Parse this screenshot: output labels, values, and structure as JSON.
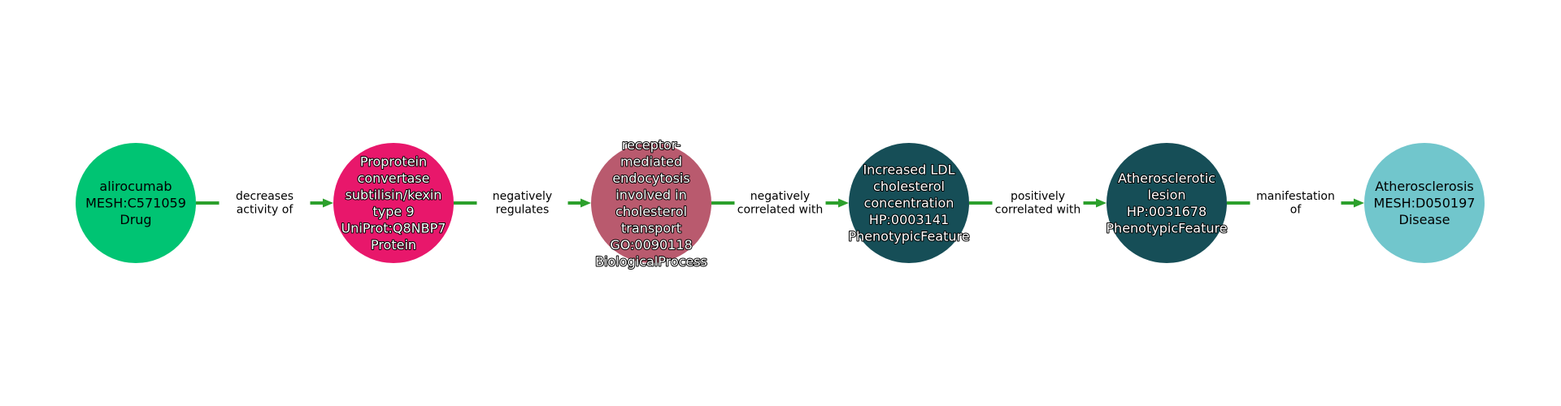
{
  "diagram": {
    "edge_color": "#2ca02c",
    "nodes": [
      {
        "id": "alirocumab",
        "color": "#00c473",
        "label_lines": [
          "alirocumab",
          "MESH:C571059",
          "Drug"
        ],
        "text_style": "dark"
      },
      {
        "id": "pcsk9",
        "color": "#e8176b",
        "label_lines": [
          "Proprotein",
          "convertase",
          "subtilisin/kexin",
          "type 9",
          "UniProt:Q8NBP7",
          "Protein"
        ],
        "text_style": "light"
      },
      {
        "id": "receptor-mediated-endocytosis",
        "color": "#b95a6e",
        "label_lines": [
          "receptor-",
          "mediated",
          "endocytosis",
          "involved in",
          "cholesterol",
          "transport",
          "GO:0090118",
          "BiologicalProcess"
        ],
        "text_style": "light"
      },
      {
        "id": "increased-ldl",
        "color": "#164e57",
        "label_lines": [
          "Increased LDL",
          "cholesterol",
          "concentration",
          "HP:0003141",
          "PhenotypicFeature"
        ],
        "text_style": "light"
      },
      {
        "id": "atherosclerotic-lesion",
        "color": "#164e57",
        "label_lines": [
          "Atherosclerotic",
          "lesion",
          "HP:0031678",
          "PhenotypicFeature"
        ],
        "text_style": "light"
      },
      {
        "id": "atherosclerosis",
        "color": "#71c6cc",
        "label_lines": [
          "Atherosclerosis",
          "MESH:D050197",
          "Disease"
        ],
        "text_style": "dark"
      }
    ],
    "edges": [
      {
        "from": 0,
        "to": 1,
        "label_lines": [
          "decreases",
          "activity of"
        ]
      },
      {
        "from": 1,
        "to": 2,
        "label_lines": [
          "negatively",
          "regulates"
        ]
      },
      {
        "from": 2,
        "to": 3,
        "label_lines": [
          "negatively",
          "correlated with"
        ]
      },
      {
        "from": 3,
        "to": 4,
        "label_lines": [
          "positively",
          "correlated with"
        ]
      },
      {
        "from": 4,
        "to": 5,
        "label_lines": [
          "manifestation",
          "of"
        ]
      }
    ]
  }
}
